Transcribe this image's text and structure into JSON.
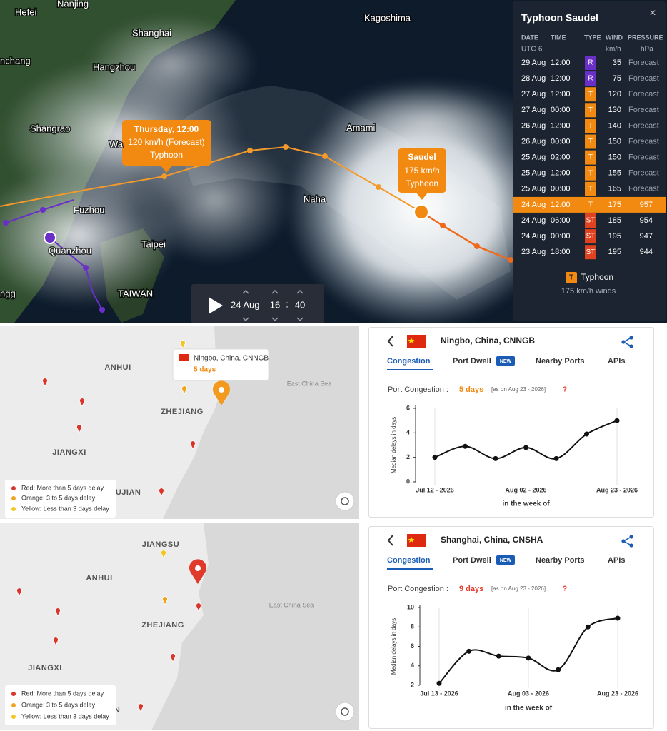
{
  "typhoon_map": {
    "cities": [
      "Hefei",
      "Nanjing",
      "Shanghai",
      "Hangzhou",
      "Kagoshima",
      "nchang",
      "Shangrao",
      "Wa",
      "Amami",
      "Fuzhou",
      "Naha",
      "Quanzhou",
      "Taipei",
      "TAIWAN",
      "ngg"
    ],
    "forecast_callout": [
      "Thursday, 12:00",
      "120 km/h (Forecast)",
      "Typhoon"
    ],
    "current_callout": [
      "Saudel",
      "175 km/h",
      "Typhoon"
    ],
    "player": {
      "date": "24 Aug",
      "hour": "16",
      "separator": ":",
      "minute": "40"
    }
  },
  "typhoon_panel": {
    "title": "Typhoon Saudel",
    "close": "×",
    "headers": [
      "DATE",
      "TIME",
      "TYPE",
      "WIND",
      "PRESSURE"
    ],
    "units": [
      "UTC-6",
      "km/h",
      "hPa"
    ],
    "type_colors": {
      "R": "#6a2fc8",
      "T": "#f28a12",
      "ST": "#e0421f"
    },
    "rows": [
      [
        "29 Aug",
        "12:00",
        "R",
        35,
        "Forecast"
      ],
      [
        "28 Aug",
        "12:00",
        "R",
        75,
        "Forecast"
      ],
      [
        "27 Aug",
        "12:00",
        "T",
        120,
        "Forecast"
      ],
      [
        "27 Aug",
        "00:00",
        "T",
        130,
        "Forecast"
      ],
      [
        "26 Aug",
        "12:00",
        "T",
        140,
        "Forecast"
      ],
      [
        "26 Aug",
        "00:00",
        "T",
        150,
        "Forecast"
      ],
      [
        "25 Aug",
        "02:00",
        "T",
        150,
        "Forecast"
      ],
      [
        "25 Aug",
        "12:00",
        "T",
        155,
        "Forecast"
      ],
      [
        "25 Aug",
        "00:00",
        "T",
        165,
        "Forecast"
      ],
      [
        "24 Aug",
        "12:00",
        "T",
        175,
        957
      ],
      [
        "24 Aug",
        "06:00",
        "ST",
        185,
        954
      ],
      [
        "24 Aug",
        "00:00",
        "ST",
        195,
        947
      ],
      [
        "23 Aug",
        "18:00",
        "ST",
        195,
        944
      ]
    ],
    "legend": {
      "badge": "T",
      "label": "Typhoon",
      "detail": "175 km/h winds"
    }
  },
  "ports": [
    {
      "map_labels": [
        "ANHUI",
        "ZHEJIANG",
        "JIANGXI",
        "FUJIAN",
        "East China Sea"
      ],
      "popup": {
        "name": "Ningbo, China, CNNGB",
        "delay": "5 days"
      },
      "legend": [
        "Red: More than 5 days delay",
        "Orange: 3 to 5 days delay",
        "Yellow: Less than 3 days delay"
      ],
      "card": {
        "name": "Ningbo, China, CNNGB",
        "tabs": [
          "Congestion",
          "Port Dwell",
          "Nearby Ports",
          "APIs"
        ],
        "new_badge": "NEW",
        "congestion_label": "Port Congestion :",
        "congestion_value": "5 days",
        "congestion_color": "#f08a14",
        "as_on": "[as on Aug 23 - 2026]",
        "help": "?"
      }
    },
    {
      "map_labels": [
        "JIANGSU",
        "ANHUI",
        "ZHEJIANG",
        "JIANGXI",
        "FUJIAN",
        "East China Sea"
      ],
      "legend": [
        "Red: More than 5 days delay",
        "Orange: 3 to 5 days delay",
        "Yellow: Less than 3 days delay"
      ],
      "card": {
        "name": "Shanghai, China, CNSHA",
        "tabs": [
          "Congestion",
          "Port Dwell",
          "Nearby Ports",
          "APIs"
        ],
        "new_badge": "NEW",
        "congestion_label": "Port Congestion :",
        "congestion_value": "9 days",
        "congestion_color": "#e03a2a",
        "as_on": "[as on Aug 23 - 2026]",
        "help": "?"
      }
    }
  ],
  "chart_data": [
    {
      "type": "line",
      "y_label": "Median delays in days",
      "x_label": "in the week of",
      "categories": [
        "Jul 12 - 2026",
        null,
        null,
        "Aug 02 - 2026",
        null,
        null,
        "Aug 23 - 2026"
      ],
      "values": [
        2.0,
        2.9,
        1.9,
        2.8,
        1.9,
        3.9,
        5.0
      ],
      "color": "#111111",
      "ylim": [
        0,
        6
      ],
      "yticks": [
        0,
        2,
        4,
        6
      ]
    },
    {
      "type": "line",
      "y_label": "Median delays in days",
      "x_label": "in the week of",
      "categories": [
        "Jul 13 - 2026",
        null,
        null,
        "Aug 03 - 2026",
        null,
        null,
        "Aug 23 - 2026"
      ],
      "values": [
        2.2,
        5.5,
        5.0,
        4.8,
        3.6,
        8.0,
        8.9
      ],
      "color": "#111111",
      "ylim": [
        2,
        10
      ],
      "yticks": [
        2,
        4,
        6,
        8,
        10
      ]
    }
  ]
}
